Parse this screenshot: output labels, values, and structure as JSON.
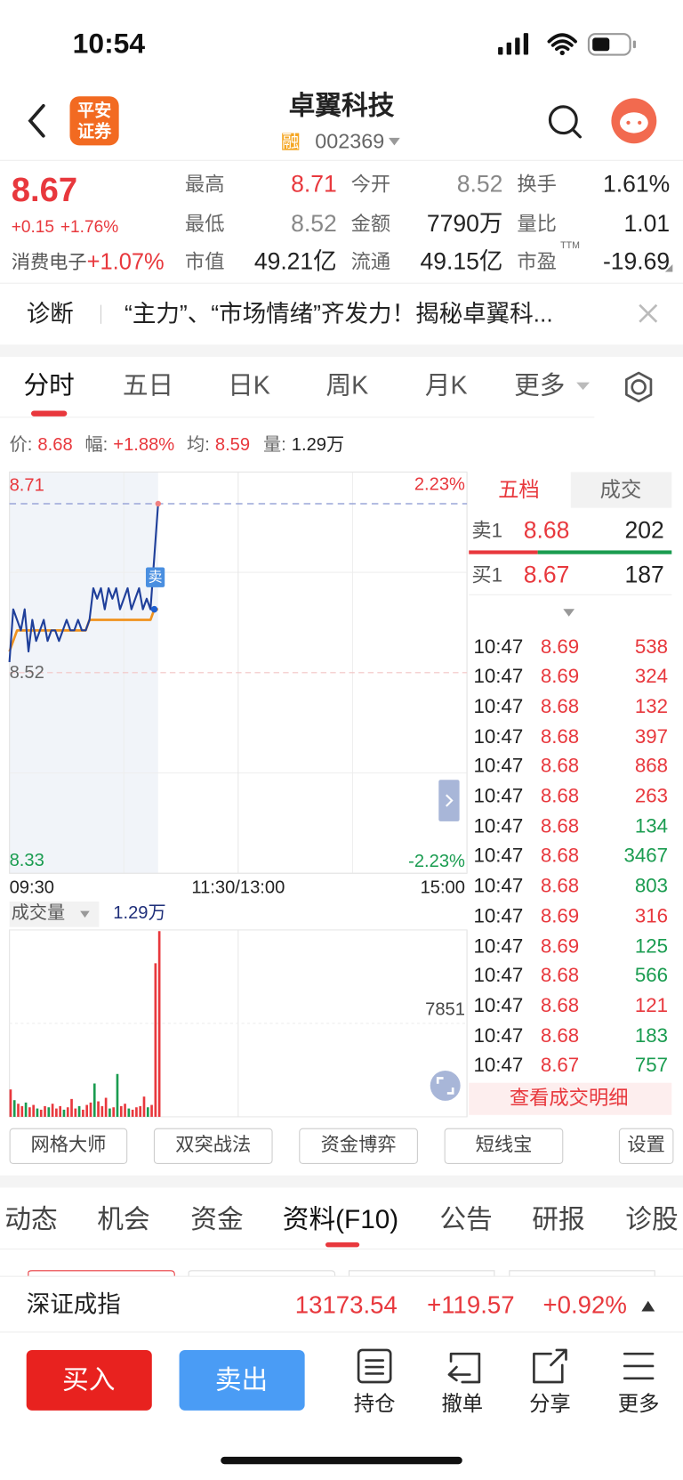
{
  "status_bar": {
    "time": "10:54"
  },
  "header": {
    "logo": [
      "平安",
      "证券"
    ],
    "title": "卓翼科技",
    "badge": "融",
    "code": "002369"
  },
  "quote": {
    "price": 8.67,
    "change": "+0.15",
    "change_pct": "+1.76%",
    "sector": "消费电子",
    "sector_pct": "+1.07%",
    "stats": [
      {
        "label": "最高",
        "value": 8.71
      },
      {
        "label": "今开",
        "value": 8.52
      },
      {
        "label": "换手",
        "value": "1.61%"
      },
      {
        "label": "最低",
        "value": 8.52
      },
      {
        "label": "金额",
        "value": "7790万"
      },
      {
        "label": "量比",
        "value": 1.01
      },
      {
        "label": "市值",
        "value": "49.21亿"
      },
      {
        "label": "流通",
        "value": "49.15亿"
      },
      {
        "label": "市盈",
        "value": -19.69,
        "sup": "TTM"
      }
    ]
  },
  "diagnosis": {
    "label": "诊断",
    "text": "“主力”、“市场情绪”齐发力！揭秘卓翼科..."
  },
  "chart_tabs": [
    "分时",
    "五日",
    "日K",
    "周K",
    "月K",
    "更多"
  ],
  "info": [
    {
      "label": "价:",
      "value": 8.68
    },
    {
      "label": "幅:",
      "value": "+1.88%"
    },
    {
      "label": "均:",
      "value": 8.59
    },
    {
      "label": "量:",
      "value": "1.29万"
    }
  ],
  "chart_data": [
    {
      "type": "line",
      "marker": "卖",
      "x": [
        0,
        2,
        4,
        6,
        8,
        10,
        12,
        14,
        16,
        18,
        20,
        22,
        24,
        26,
        28,
        30,
        32,
        34,
        36,
        38,
        40,
        42,
        44,
        46,
        48,
        50,
        52,
        54,
        56,
        58,
        60,
        62,
        64,
        66,
        68,
        70,
        72,
        74,
        76,
        78
      ],
      "xlim": [
        0,
        240
      ],
      "xticks": [
        {
          "value": 0,
          "label": "09:30"
        },
        {
          "value": 120,
          "label": "11:30/13:00"
        },
        {
          "value": 240,
          "label": "15:00"
        }
      ],
      "ylim": [
        8.33,
        8.71
      ],
      "yticks": [
        8.71,
        8.52,
        8.33
      ],
      "y2lim": [
        -2.23,
        2.23
      ],
      "y2ticks": [
        {
          "value": 2.23,
          "label": "2.23%"
        },
        {
          "value": -2.23,
          "label": "-2.23%"
        }
      ],
      "series": [
        {
          "color": "#1f3f9a",
          "values": [
            8.53,
            8.58,
            8.57,
            8.56,
            8.58,
            8.54,
            8.57,
            8.55,
            8.56,
            8.57,
            8.55,
            8.56,
            8.56,
            8.55,
            8.56,
            8.57,
            8.56,
            8.56,
            8.57,
            8.56,
            8.56,
            8.57,
            8.6,
            8.59,
            8.6,
            8.58,
            8.6,
            8.59,
            8.6,
            8.58,
            8.59,
            8.6,
            8.58,
            8.59,
            8.6,
            8.58,
            8.59,
            8.58,
            8.63,
            8.68
          ]
        },
        {
          "color": "#f0921e",
          "values": [
            8.54,
            8.55,
            8.56,
            8.56,
            8.56,
            8.56,
            8.56,
            8.56,
            8.56,
            8.56,
            8.56,
            8.56,
            8.56,
            8.56,
            8.56,
            8.56,
            8.56,
            8.56,
            8.56,
            8.56,
            8.56,
            8.57,
            8.57,
            8.57,
            8.57,
            8.57,
            8.57,
            8.57,
            8.57,
            8.57,
            8.57,
            8.57,
            8.57,
            8.57,
            8.57,
            8.57,
            8.57,
            8.57,
            8.58,
            8.58
          ]
        }
      ]
    },
    {
      "type": "bar",
      "title": "成交量",
      "value_label": "1.29万",
      "x": [
        0,
        2,
        4,
        6,
        8,
        10,
        12,
        14,
        16,
        18,
        20,
        22,
        24,
        26,
        28,
        30,
        32,
        34,
        36,
        38,
        40,
        42,
        44,
        46,
        48,
        50,
        52,
        54,
        56,
        58,
        60,
        62,
        64,
        66,
        68,
        70,
        72,
        74,
        76,
        78
      ],
      "xlim": [
        0,
        240
      ],
      "ylim": [
        0,
        15702
      ],
      "yticks": [
        7851
      ],
      "values": [
        2300,
        1400,
        1100,
        900,
        1200,
        800,
        1000,
        700,
        600,
        900,
        800,
        1100,
        700,
        900,
        600,
        800,
        1500,
        700,
        900,
        600,
        1000,
        1200,
        2800,
        1300,
        900,
        1600,
        700,
        800,
        3600,
        900,
        1100,
        700,
        600,
        800,
        900,
        1700,
        800,
        1000,
        12900,
        15600
      ],
      "colors": [
        "#e8383d",
        "#1a9c50",
        "#e8383d",
        "#e8383d",
        "#1a9c50",
        "#e8383d",
        "#e8383d",
        "#1a9c50",
        "#e8383d",
        "#e8383d",
        "#1a9c50",
        "#e8383d",
        "#e8383d",
        "#e8383d",
        "#1a9c50",
        "#e8383d",
        "#e8383d",
        "#e8383d",
        "#1a9c50",
        "#e8383d",
        "#e8383d",
        "#e8383d",
        "#1a9c50",
        "#e8383d",
        "#e8383d",
        "#e8383d",
        "#1a9c50",
        "#e8383d",
        "#1a9c50",
        "#e8383d",
        "#e8383d",
        "#1a9c50",
        "#e8383d",
        "#e8383d",
        "#e8383d",
        "#e8383d",
        "#1a9c50",
        "#e8383d",
        "#e8383d",
        "#e8383d"
      ]
    }
  ],
  "order_book": {
    "tabs": [
      "五档",
      "成交"
    ],
    "levels": [
      {
        "label": "卖1",
        "price": 8.68,
        "volume": 202
      },
      {
        "label": "买1",
        "price": 8.67,
        "volume": 187
      }
    ],
    "trades": [
      {
        "time": "10:47",
        "price": 8.69,
        "volume": 538,
        "color": "#e8383d"
      },
      {
        "time": "10:47",
        "price": 8.69,
        "volume": 324,
        "color": "#e8383d"
      },
      {
        "time": "10:47",
        "price": 8.68,
        "volume": 132,
        "color": "#e8383d"
      },
      {
        "time": "10:47",
        "price": 8.68,
        "volume": 397,
        "color": "#e8383d"
      },
      {
        "time": "10:47",
        "price": 8.68,
        "volume": 868,
        "color": "#e8383d"
      },
      {
        "time": "10:47",
        "price": 8.68,
        "volume": 263,
        "color": "#e8383d"
      },
      {
        "time": "10:47",
        "price": 8.68,
        "volume": 134,
        "color": "#1a9c50"
      },
      {
        "time": "10:47",
        "price": 8.68,
        "volume": 3467,
        "color": "#1a9c50"
      },
      {
        "time": "10:47",
        "price": 8.68,
        "volume": 803,
        "color": "#1a9c50"
      },
      {
        "time": "10:47",
        "price": 8.69,
        "volume": 316,
        "color": "#e8383d"
      },
      {
        "time": "10:47",
        "price": 8.69,
        "volume": 125,
        "color": "#1a9c50"
      },
      {
        "time": "10:47",
        "price": 8.68,
        "volume": 566,
        "color": "#1a9c50"
      },
      {
        "time": "10:47",
        "price": 8.68,
        "volume": 121,
        "color": "#e8383d"
      },
      {
        "time": "10:47",
        "price": 8.68,
        "volume": 183,
        "color": "#1a9c50"
      },
      {
        "time": "10:47",
        "price": 8.67,
        "volume": 757,
        "color": "#1a9c50"
      }
    ],
    "detail_link": "查看成交明细"
  },
  "tools": [
    "网格大师",
    "双突战法",
    "资金博弈",
    "短线宝",
    "设置"
  ],
  "section_tabs": [
    "动态",
    "机会",
    "资金",
    "资料(F10)",
    "公告",
    "研报",
    "诊股"
  ],
  "index_bar": {
    "name": "深证成指",
    "value": 13173.54,
    "change": "+119.57",
    "pct": "+0.92%"
  },
  "actions": {
    "buy": "买入",
    "sell": "卖出",
    "tools": [
      "持仓",
      "撤单",
      "分享",
      "更多"
    ]
  }
}
